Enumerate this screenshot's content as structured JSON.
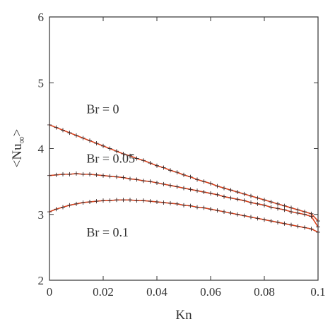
{
  "chart_data": {
    "type": "line",
    "title": "",
    "xlabel": "Kn",
    "ylabel": "<Nu∞>",
    "xlim": [
      0,
      0.1
    ],
    "ylim": [
      2,
      6
    ],
    "x_ticks": [
      0,
      0.02,
      0.04,
      0.06,
      0.08,
      0.1
    ],
    "x_tick_labels": [
      "0",
      "0.02",
      "0.04",
      "0.06",
      "0.08",
      "0.1"
    ],
    "y_ticks": [
      2,
      3,
      4,
      5,
      6
    ],
    "y_tick_labels": [
      "2",
      "3",
      "4",
      "5",
      "6"
    ],
    "grid": false,
    "legend": "none",
    "line_color": "#d9431e",
    "marker_color": "#3a2a2a",
    "marker": "plus",
    "annotations": [
      {
        "text": "Br = 0",
        "x": 0.008,
        "y": 4.6
      },
      {
        "text": "Br = 0.05",
        "x": 0.008,
        "y": 3.85
      },
      {
        "text": "Br = 0.1",
        "x": 0.008,
        "y": 2.73
      }
    ],
    "x": [
      0,
      0.0025,
      0.005,
      0.0075,
      0.01,
      0.0125,
      0.015,
      0.0175,
      0.02,
      0.0225,
      0.025,
      0.0275,
      0.03,
      0.0325,
      0.035,
      0.0375,
      0.04,
      0.0425,
      0.045,
      0.0475,
      0.05,
      0.0525,
      0.055,
      0.0575,
      0.06,
      0.0625,
      0.065,
      0.0675,
      0.07,
      0.0725,
      0.075,
      0.0775,
      0.08,
      0.0825,
      0.085,
      0.0875,
      0.09,
      0.0925,
      0.095,
      0.0975,
      0.1
    ],
    "series": [
      {
        "values": [
          4.36,
          4.32,
          4.28,
          4.24,
          4.2,
          4.16,
          4.12,
          4.08,
          4.04,
          4.0,
          3.96,
          3.92,
          3.89,
          3.85,
          3.82,
          3.78,
          3.74,
          3.71,
          3.67,
          3.64,
          3.6,
          3.57,
          3.53,
          3.5,
          3.47,
          3.43,
          3.4,
          3.37,
          3.34,
          3.31,
          3.28,
          3.25,
          3.22,
          3.19,
          3.16,
          3.13,
          3.1,
          3.07,
          3.04,
          3.01,
          2.9
        ]
      },
      {
        "values": [
          3.59,
          3.6,
          3.61,
          3.61,
          3.62,
          3.61,
          3.61,
          3.6,
          3.59,
          3.58,
          3.57,
          3.56,
          3.54,
          3.53,
          3.51,
          3.5,
          3.48,
          3.46,
          3.44,
          3.42,
          3.4,
          3.38,
          3.36,
          3.34,
          3.32,
          3.3,
          3.27,
          3.25,
          3.23,
          3.21,
          3.18,
          3.16,
          3.14,
          3.11,
          3.09,
          3.07,
          3.04,
          3.02,
          3.0,
          2.97,
          2.81
        ]
      },
      {
        "values": [
          3.04,
          3.08,
          3.11,
          3.14,
          3.16,
          3.18,
          3.19,
          3.2,
          3.21,
          3.21,
          3.22,
          3.22,
          3.22,
          3.21,
          3.21,
          3.2,
          3.19,
          3.18,
          3.17,
          3.16,
          3.14,
          3.13,
          3.11,
          3.1,
          3.08,
          3.06,
          3.04,
          3.02,
          3.0,
          2.98,
          2.96,
          2.94,
          2.92,
          2.9,
          2.88,
          2.86,
          2.84,
          2.82,
          2.8,
          2.78,
          2.73
        ]
      }
    ]
  }
}
